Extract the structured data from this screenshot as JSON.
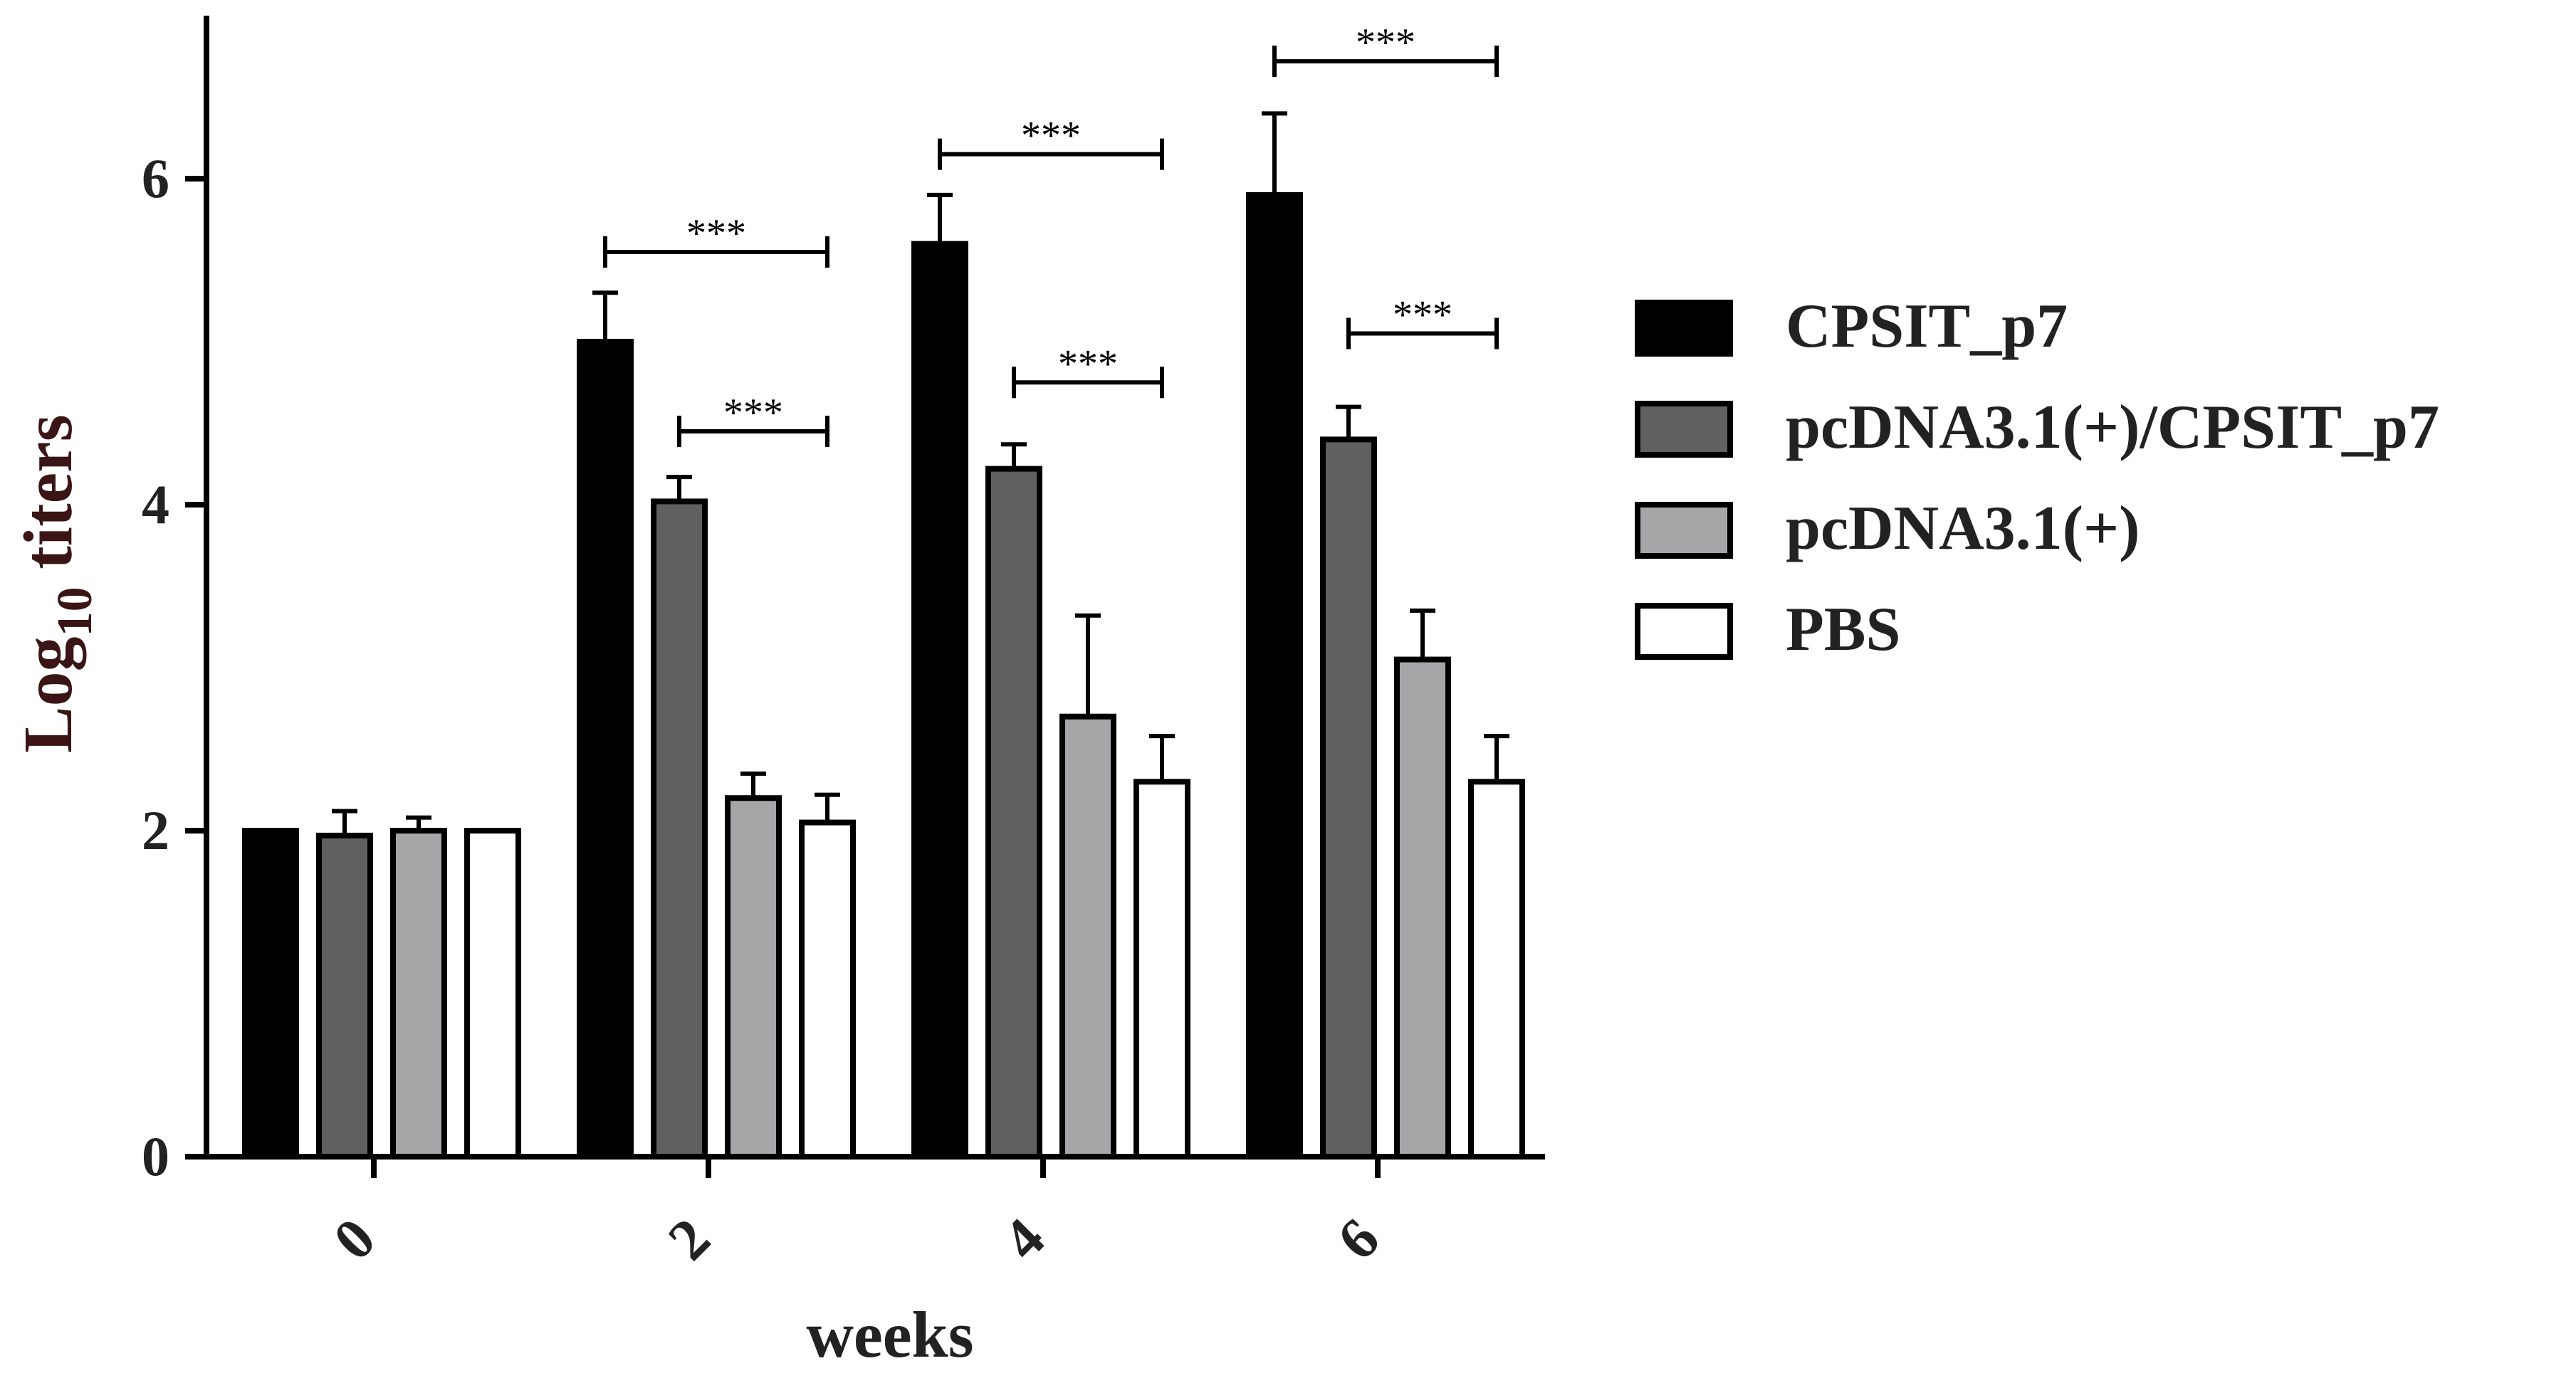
{
  "chart_data": {
    "type": "bar",
    "title": "",
    "xlabel": "weeks",
    "ylabel": {
      "prefix": "Log",
      "subscript": "10",
      "suffix": " titers"
    },
    "ylim": [
      0,
      7
    ],
    "yticks": [
      "0",
      "2",
      "4",
      "6"
    ],
    "categories": [
      "0",
      "2",
      "4",
      "6"
    ],
    "series": [
      {
        "name": "CPSIT_p7",
        "color": "#000000",
        "values": [
          2.0,
          5.0,
          5.6,
          5.9
        ],
        "errors": [
          0.0,
          0.3,
          0.3,
          0.5
        ]
      },
      {
        "name": "pcDNA3.1(+)/CPSIT_p7",
        "color": "#606060",
        "values": [
          1.97,
          4.02,
          4.22,
          4.4
        ],
        "errors": [
          0.15,
          0.15,
          0.15,
          0.2
        ]
      },
      {
        "name": "pcDNA3.1(+)",
        "color": "#a6a6a8",
        "values": [
          2.0,
          2.2,
          2.7,
          3.05
        ],
        "errors": [
          0.08,
          0.15,
          0.62,
          0.3
        ]
      },
      {
        "name": "PBS",
        "color": "#ffffff",
        "values": [
          2.0,
          2.05,
          2.3,
          2.3
        ],
        "errors": [
          0.0,
          0.17,
          0.28,
          0.28
        ]
      }
    ],
    "significance": [
      {
        "category": 1,
        "from_series": 0,
        "to_series": 3,
        "y": 5.55,
        "label": "***"
      },
      {
        "category": 1,
        "from_series": 1,
        "to_series": 3,
        "y": 4.45,
        "label": "***"
      },
      {
        "category": 2,
        "from_series": 0,
        "to_series": 3,
        "y": 6.15,
        "label": "***"
      },
      {
        "category": 2,
        "from_series": 1,
        "to_series": 3,
        "y": 4.75,
        "label": "***"
      },
      {
        "category": 3,
        "from_series": 0,
        "to_series": 3,
        "y": 6.72,
        "label": "***"
      },
      {
        "category": 3,
        "from_series": 1,
        "to_series": 3,
        "y": 5.05,
        "label": "***"
      }
    ],
    "legend_position": "right"
  }
}
